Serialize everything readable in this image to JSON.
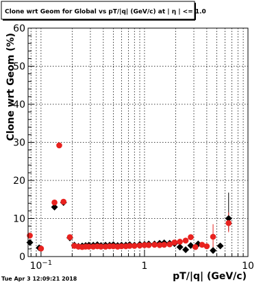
{
  "title": "Clone wrt Geom for Global vs pT/|q| (GeV/c) at |  η | <= 1.0",
  "footer": "Tue Apr  3 12:09:21 2018",
  "chart_data": {
    "type": "scatter",
    "title": "Clone wrt Geom for Global vs pT/|q| (GeV/c) at |  η | <= 1.0",
    "xlabel": "pT/|q| (GeV/c)",
    "ylabel": "Clone wrt Geom (%)",
    "xscale": "log",
    "xlim": [
      0.075,
      10
    ],
    "ylim": [
      0,
      60
    ],
    "grid": true,
    "x_tick_labels": [
      {
        "value": 0.1,
        "label": "10",
        "sup": "−1"
      },
      {
        "value": 1,
        "label": "1"
      },
      {
        "value": 10,
        "label": "10"
      }
    ],
    "y_ticks": [
      0,
      10,
      20,
      30,
      40,
      50,
      60
    ],
    "series": [
      {
        "color": "#000000",
        "marker": "diamond",
        "points": [
          {
            "x": 0.078,
            "y": 3.7
          },
          {
            "x": 0.096,
            "y": 2.3
          },
          {
            "x": 0.135,
            "y": 13.0
          },
          {
            "x": 0.165,
            "y": 14.2
          },
          {
            "x": 0.19,
            "y": 4.9
          },
          {
            "x": 0.21,
            "y": 3.0
          },
          {
            "x": 0.23,
            "y": 2.7
          },
          {
            "x": 0.25,
            "y": 2.8
          },
          {
            "x": 0.27,
            "y": 2.9
          },
          {
            "x": 0.29,
            "y": 3.0
          },
          {
            "x": 0.32,
            "y": 3.0
          },
          {
            "x": 0.35,
            "y": 3.1
          },
          {
            "x": 0.38,
            "y": 2.9
          },
          {
            "x": 0.42,
            "y": 3.0
          },
          {
            "x": 0.46,
            "y": 3.0
          },
          {
            "x": 0.5,
            "y": 3.1
          },
          {
            "x": 0.55,
            "y": 2.9
          },
          {
            "x": 0.6,
            "y": 3.0
          },
          {
            "x": 0.66,
            "y": 3.0
          },
          {
            "x": 0.72,
            "y": 3.1
          },
          {
            "x": 0.8,
            "y": 3.0
          },
          {
            "x": 0.9,
            "y": 3.2
          },
          {
            "x": 1.0,
            "y": 3.2
          },
          {
            "x": 1.1,
            "y": 3.3
          },
          {
            "x": 1.25,
            "y": 3.3
          },
          {
            "x": 1.4,
            "y": 3.5
          },
          {
            "x": 1.55,
            "y": 3.6
          },
          {
            "x": 1.75,
            "y": 3.5
          },
          {
            "x": 1.95,
            "y": 3.4
          },
          {
            "x": 2.2,
            "y": 2.5
          },
          {
            "x": 2.5,
            "y": 1.8
          },
          {
            "x": 2.8,
            "y": 2.9
          },
          {
            "x": 3.3,
            "y": 3.3
          },
          {
            "x": 4.6,
            "y": 1.6
          },
          {
            "x": 5.4,
            "y": 2.8
          },
          {
            "x": 6.5,
            "y": 10.0,
            "err_low": 6.8,
            "err_high": 16.8
          }
        ]
      },
      {
        "color": "#e8221f",
        "marker": "circle",
        "points": [
          {
            "x": 0.078,
            "y": 5.5
          },
          {
            "x": 0.1,
            "y": 2.1
          },
          {
            "x": 0.135,
            "y": 14.2
          },
          {
            "x": 0.15,
            "y": 29.2
          },
          {
            "x": 0.165,
            "y": 14.4
          },
          {
            "x": 0.19,
            "y": 5.1
          },
          {
            "x": 0.21,
            "y": 2.8
          },
          {
            "x": 0.23,
            "y": 2.6
          },
          {
            "x": 0.25,
            "y": 2.5
          },
          {
            "x": 0.27,
            "y": 2.6
          },
          {
            "x": 0.29,
            "y": 2.6
          },
          {
            "x": 0.32,
            "y": 2.6
          },
          {
            "x": 0.35,
            "y": 2.7
          },
          {
            "x": 0.38,
            "y": 2.6
          },
          {
            "x": 0.42,
            "y": 2.6
          },
          {
            "x": 0.46,
            "y": 2.7
          },
          {
            "x": 0.5,
            "y": 2.7
          },
          {
            "x": 0.55,
            "y": 2.6
          },
          {
            "x": 0.6,
            "y": 2.7
          },
          {
            "x": 0.66,
            "y": 2.7
          },
          {
            "x": 0.72,
            "y": 2.8
          },
          {
            "x": 0.8,
            "y": 2.8
          },
          {
            "x": 0.9,
            "y": 2.9
          },
          {
            "x": 1.0,
            "y": 3.0
          },
          {
            "x": 1.1,
            "y": 3.0
          },
          {
            "x": 1.25,
            "y": 3.1
          },
          {
            "x": 1.4,
            "y": 3.0
          },
          {
            "x": 1.55,
            "y": 3.1
          },
          {
            "x": 1.75,
            "y": 3.2
          },
          {
            "x": 1.95,
            "y": 3.7
          },
          {
            "x": 2.2,
            "y": 3.9
          },
          {
            "x": 2.5,
            "y": 4.2
          },
          {
            "x": 2.8,
            "y": 5.1
          },
          {
            "x": 3.1,
            "y": 2.5
          },
          {
            "x": 3.6,
            "y": 3.1
          },
          {
            "x": 4.0,
            "y": 2.7
          },
          {
            "x": 4.6,
            "y": 5.2,
            "err_low": 2.0,
            "err_high": 8.5
          },
          {
            "x": 6.5,
            "y": 8.8,
            "err_low": 6.4,
            "err_high": 11.6
          }
        ]
      }
    ]
  }
}
